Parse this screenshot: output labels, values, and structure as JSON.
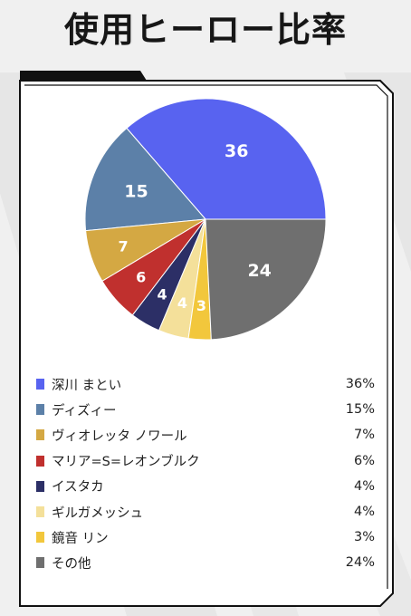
{
  "title": "使用ヒーロー比率",
  "colors": {
    "frame": "#111111",
    "panel": "#ffffff",
    "background": "#f0f0f0",
    "stripe": "#e4e4e4"
  },
  "chart_data": {
    "type": "pie",
    "title": "使用ヒーロー比率",
    "slices": [
      {
        "name": "深川 まとい",
        "value": 36,
        "percent_label": "36%",
        "color": "#5863f0"
      },
      {
        "name": "ディズィー",
        "value": 15,
        "percent_label": "15%",
        "color": "#5c80a8"
      },
      {
        "name": "ヴィオレッタ ノワール",
        "value": 7,
        "percent_label": "7%",
        "color": "#d4a843"
      },
      {
        "name": "マリア=S=レオンブルク",
        "value": 6,
        "percent_label": "6%",
        "color": "#c0302e"
      },
      {
        "name": "イスタカ",
        "value": 4,
        "percent_label": "4%",
        "color": "#2c2f66"
      },
      {
        "name": "ギルガメッシュ",
        "value": 4,
        "percent_label": "4%",
        "color": "#f4e09a"
      },
      {
        "name": "鏡音 リン",
        "value": 3,
        "percent_label": "3%",
        "color": "#f2c73c"
      },
      {
        "name": "その他",
        "value": 24,
        "percent_label": "24%",
        "color": "#6f6f6f"
      }
    ],
    "legend_position": "bottom"
  }
}
